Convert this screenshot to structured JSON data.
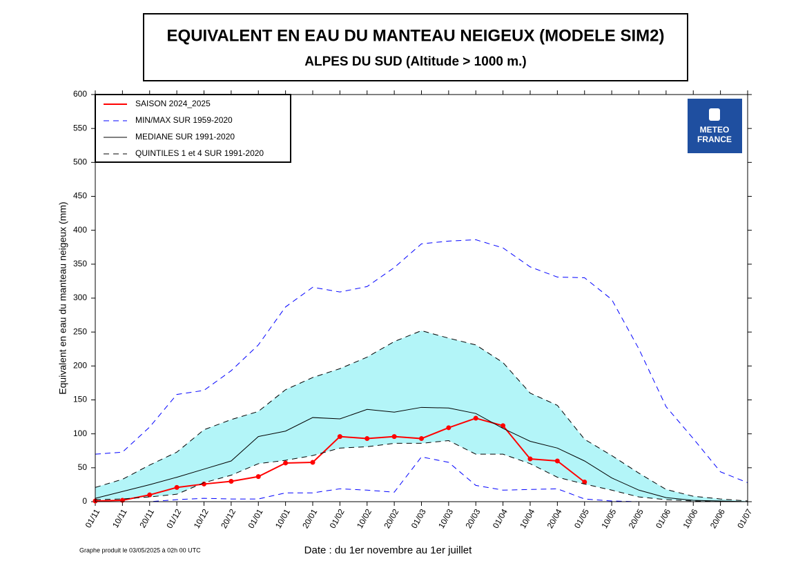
{
  "chart_data": {
    "type": "line",
    "title": "EQUIVALENT EN EAU DU MANTEAU NEIGEUX (MODELE SIM2)",
    "subtitle": "ALPES DU SUD (Altitude > 1000 m.)",
    "y_label": "Equivalent en eau du manteau neigeux (mm)",
    "x_label": "Date : du 1er novembre au 1er juillet",
    "footer": "Graphe produit le 03/05/2025 à 02h 00 UTC",
    "logo": [
      "METEO",
      "FRANCE"
    ],
    "categories": [
      "01/11",
      "10/11",
      "20/11",
      "01/12",
      "10/12",
      "20/12",
      "01/01",
      "10/01",
      "20/01",
      "01/02",
      "10/02",
      "20/02",
      "01/03",
      "10/03",
      "20/03",
      "01/04",
      "10/04",
      "20/04",
      "01/05",
      "10/05",
      "20/05",
      "01/06",
      "10/06",
      "20/06",
      "01/07"
    ],
    "ylim": [
      0,
      600
    ],
    "yticks": [
      0,
      50,
      100,
      150,
      200,
      250,
      300,
      350,
      400,
      450,
      500,
      550,
      600
    ],
    "fill_between": [
      4,
      5
    ],
    "fill_color": "#b3f5f8",
    "legend": "upper left",
    "series": [
      {
        "name": "SAISON 2024_2025",
        "color": "#ff0000",
        "markers": true,
        "width": 2,
        "values": [
          1,
          2,
          10,
          21,
          26,
          30,
          37,
          57,
          58,
          96,
          93,
          96,
          93,
          109,
          123,
          112,
          63,
          60,
          29,
          null,
          null,
          null,
          null,
          null,
          null
        ]
      },
      {
        "name": "MIN/MAX SUR 1959-2020",
        "color": "#0000ff",
        "dash": true,
        "width": 1,
        "values": [
          70,
          73,
          110,
          158,
          164,
          193,
          231,
          287,
          316,
          309,
          317,
          345,
          380,
          384,
          386,
          374,
          346,
          331,
          330,
          298,
          225,
          140,
          93,
          44,
          28
        ]
      },
      {
        "color": "#0000ff",
        "dash": true,
        "width": 1,
        "values": [
          0,
          0,
          0,
          3,
          5,
          4,
          4,
          13,
          13,
          19,
          17,
          14,
          66,
          58,
          24,
          17,
          18,
          19,
          4,
          1,
          0,
          0,
          0,
          0,
          0
        ]
      },
      {
        "name": "MEDIANE SUR 1991-2020",
        "color": "#000000",
        "width": 1,
        "values": [
          5,
          15,
          25,
          36,
          48,
          60,
          96,
          104,
          124,
          122,
          136,
          132,
          139,
          138,
          130,
          108,
          89,
          79,
          60,
          35,
          17,
          6,
          2,
          1,
          0
        ]
      },
      {
        "name": "QUINTILES 1 et 4 SUR 1991-2020",
        "color": "#000000",
        "dash": true,
        "width": 1,
        "values": [
          21,
          33,
          54,
          73,
          106,
          121,
          133,
          165,
          183,
          196,
          213,
          236,
          252,
          241,
          231,
          205,
          160,
          142,
          92,
          68,
          42,
          18,
          8,
          4,
          1
        ]
      },
      {
        "color": "#000000",
        "dash": true,
        "width": 1,
        "values": [
          3,
          4,
          7,
          11,
          28,
          39,
          56,
          61,
          68,
          79,
          81,
          86,
          86,
          90,
          70,
          70,
          56,
          36,
          26,
          17,
          7,
          3,
          1,
          0,
          0
        ]
      }
    ]
  }
}
